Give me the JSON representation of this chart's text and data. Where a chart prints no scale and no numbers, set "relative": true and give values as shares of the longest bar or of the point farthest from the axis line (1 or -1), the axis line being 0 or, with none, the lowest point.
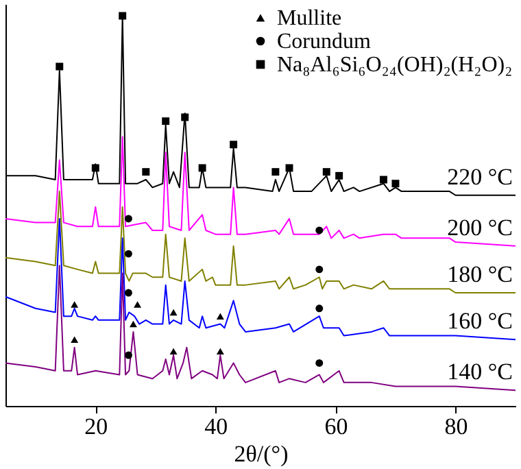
{
  "chart_data": {
    "type": "line",
    "relative": true,
    "xlabel": "2θ/(°)",
    "xlim": [
      5,
      90
    ],
    "xticks": [
      20,
      40,
      60,
      80
    ],
    "legend": "top right",
    "line_style": "solid",
    "series": [
      {
        "name": "220 °C",
        "color": "#000000",
        "x": [
          5,
          10,
          13.3,
          14,
          14.7,
          17,
          19.5,
          20,
          20.5,
          22,
          24,
          24.5,
          25,
          27,
          28.4,
          29.5,
          31.2,
          31.7,
          32.3,
          33,
          34,
          34.9,
          35.6,
          37.3,
          37.8,
          38.4,
          40,
          42.5,
          43,
          43.6,
          45,
          49.5,
          50,
          50.6,
          52.3,
          53,
          56,
          58.5,
          59.3,
          60.6,
          61.4,
          63,
          64,
          68,
          69,
          70,
          71,
          79,
          80,
          90
        ],
        "values": [
          0.59,
          0.59,
          0.58,
          0.86,
          0.58,
          0.58,
          0.58,
          0.62,
          0.57,
          0.57,
          0.57,
          1.0,
          0.57,
          0.57,
          0.58,
          0.56,
          0.57,
          0.72,
          0.57,
          0.6,
          0.56,
          0.75,
          0.56,
          0.56,
          0.61,
          0.56,
          0.56,
          0.56,
          0.66,
          0.56,
          0.56,
          0.55,
          0.58,
          0.55,
          0.61,
          0.55,
          0.55,
          0.59,
          0.55,
          0.58,
          0.55,
          0.56,
          0.55,
          0.57,
          0.55,
          0.56,
          0.55,
          0.55,
          0.54,
          0.54
        ]
      },
      {
        "name": "200 °C",
        "color": "#ff00ff",
        "x": [
          5,
          10,
          13.3,
          14,
          14.7,
          17,
          19.5,
          20,
          20.5,
          24,
          24.5,
          25,
          28.4,
          29.5,
          31.2,
          31.7,
          32.3,
          34.3,
          34.9,
          35.6,
          37.8,
          38.4,
          40,
          42.5,
          43,
          43.6,
          45,
          50,
          50.6,
          52.3,
          53,
          57.3,
          58.5,
          59.3,
          60.6,
          61.4,
          63,
          64,
          68,
          70,
          71,
          79,
          80,
          90
        ],
        "values": [
          0.48,
          0.47,
          0.47,
          0.63,
          0.47,
          0.46,
          0.46,
          0.51,
          0.46,
          0.46,
          0.69,
          0.46,
          0.47,
          0.45,
          0.45,
          0.65,
          0.46,
          0.45,
          0.65,
          0.45,
          0.49,
          0.45,
          0.44,
          0.44,
          0.56,
          0.44,
          0.44,
          0.45,
          0.44,
          0.48,
          0.44,
          0.44,
          0.46,
          0.43,
          0.45,
          0.43,
          0.44,
          0.43,
          0.44,
          0.44,
          0.43,
          0.43,
          0.42,
          0.41
        ]
      },
      {
        "name": "180 °C",
        "color": "#808000",
        "x": [
          5,
          10,
          13.3,
          14,
          14.7,
          17,
          19.5,
          20,
          20.5,
          24,
          24.5,
          25,
          25.6,
          26.2,
          28.4,
          29.5,
          31.2,
          31.7,
          32.3,
          34.3,
          34.9,
          35.6,
          37.8,
          38.4,
          39.5,
          40,
          42.5,
          43,
          43.6,
          45,
          50,
          50.6,
          52.3,
          53,
          55,
          57.3,
          57.8,
          58.5,
          60.6,
          61.4,
          63,
          66,
          68,
          69,
          79,
          80,
          90
        ],
        "values": [
          0.38,
          0.37,
          0.36,
          0.55,
          0.36,
          0.35,
          0.34,
          0.37,
          0.34,
          0.34,
          0.51,
          0.34,
          0.32,
          0.34,
          0.34,
          0.33,
          0.33,
          0.44,
          0.33,
          0.32,
          0.43,
          0.32,
          0.35,
          0.32,
          0.33,
          0.31,
          0.31,
          0.41,
          0.31,
          0.31,
          0.32,
          0.3,
          0.33,
          0.3,
          0.31,
          0.33,
          0.3,
          0.32,
          0.32,
          0.3,
          0.31,
          0.3,
          0.32,
          0.3,
          0.3,
          0.29,
          0.29
        ]
      },
      {
        "name": "160 °C",
        "color": "#0000ff",
        "x": [
          5,
          10,
          13.3,
          14,
          14.7,
          16,
          16.5,
          17,
          19.5,
          20,
          20.5,
          24,
          24.5,
          25,
          25.6,
          26.5,
          27.3,
          28.4,
          29.5,
          31.2,
          31.7,
          32.3,
          33,
          34.3,
          34.9,
          35.6,
          37.3,
          37.8,
          38.4,
          40.8,
          41.5,
          43,
          44,
          45,
          50,
          52.3,
          53,
          57.3,
          58,
          60.6,
          61.4,
          66,
          68,
          69,
          79,
          80,
          90
        ],
        "values": [
          0.28,
          0.25,
          0.24,
          0.48,
          0.23,
          0.23,
          0.25,
          0.23,
          0.22,
          0.23,
          0.22,
          0.22,
          0.43,
          0.22,
          0.24,
          0.23,
          0.21,
          0.22,
          0.21,
          0.21,
          0.31,
          0.21,
          0.22,
          0.21,
          0.32,
          0.22,
          0.2,
          0.23,
          0.2,
          0.21,
          0.2,
          0.27,
          0.21,
          0.19,
          0.2,
          0.21,
          0.19,
          0.23,
          0.2,
          0.2,
          0.18,
          0.19,
          0.2,
          0.18,
          0.18,
          0.18,
          0.17
        ]
      },
      {
        "name": "140 °C",
        "color": "#800080",
        "x": [
          5,
          10,
          13.3,
          14,
          14.7,
          16,
          16.5,
          17,
          20,
          24,
          24.5,
          25,
          25.6,
          26.3,
          27,
          29.5,
          31.2,
          31.7,
          32.3,
          33,
          33.6,
          34.6,
          35.2,
          36,
          37.8,
          39.5,
          40.3,
          40.8,
          41.4,
          43,
          44,
          45,
          50,
          50.6,
          52.3,
          55,
          57.3,
          58,
          60.6,
          61.4,
          66,
          70,
          80,
          90
        ],
        "values": [
          0.11,
          0.1,
          0.09,
          0.36,
          0.09,
          0.09,
          0.15,
          0.08,
          0.09,
          0.08,
          0.34,
          0.08,
          0.09,
          0.19,
          0.08,
          0.07,
          0.09,
          0.12,
          0.08,
          0.13,
          0.07,
          0.11,
          0.15,
          0.07,
          0.09,
          0.08,
          0.07,
          0.13,
          0.07,
          0.11,
          0.08,
          0.06,
          0.09,
          0.06,
          0.07,
          0.06,
          0.08,
          0.06,
          0.09,
          0.06,
          0.06,
          0.05,
          0.05,
          0.04
        ]
      },
      {
        "name": "Mullite",
        "type": "scatter",
        "marker": "triangle",
        "color": "#000000",
        "x": [
          16.5,
          26.3,
          33,
          40.8,
          16.5,
          27,
          33,
          40.8
        ],
        "values": [
          0.17,
          0.21,
          0.14,
          0.14,
          0.26,
          0.26,
          0.24,
          0.23
        ]
      },
      {
        "name": "Corundum",
        "type": "scatter",
        "marker": "circle",
        "color": "#000000",
        "x": [
          25.5,
          25.5,
          25.5,
          25.5,
          57.3,
          57.3,
          57.3,
          57.3
        ],
        "values": [
          0.48,
          0.39,
          0.29,
          0.13,
          0.45,
          0.35,
          0.25,
          0.11
        ]
      },
      {
        "name": "Na₈Al₆Si₆O₂₄(OH)₂(H₂O)₂",
        "type": "scatter",
        "marker": "square",
        "color": "#000000",
        "x": [
          14,
          24.5,
          20,
          28.4,
          31.7,
          34.9,
          37.8,
          43,
          50,
          52.3,
          58.5,
          60.6,
          68,
          70
        ],
        "values": [
          0.87,
          1.0,
          0.61,
          0.6,
          0.73,
          0.74,
          0.61,
          0.67,
          0.6,
          0.61,
          0.6,
          0.59,
          0.58,
          0.57
        ]
      }
    ]
  }
}
